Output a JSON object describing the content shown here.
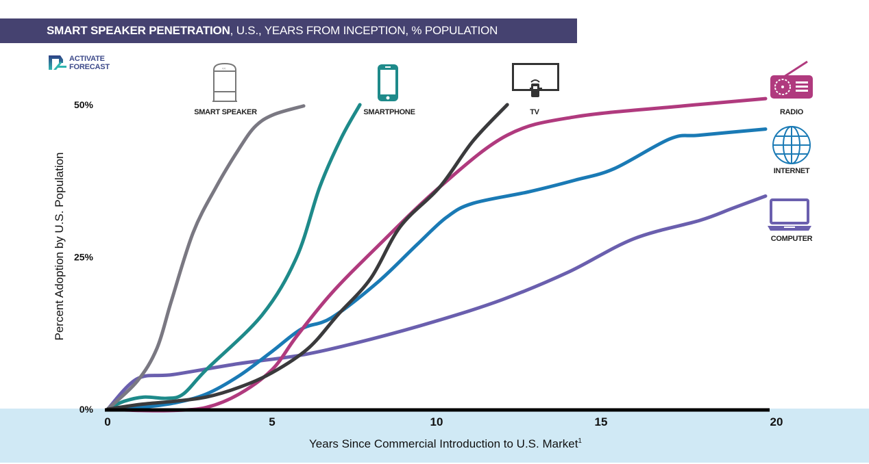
{
  "header": {
    "title_bold": "SMART SPEAKER PENETRATION",
    "title_rest": ", U.S., YEARS FROM INCEPTION, % POPULATION"
  },
  "logo": {
    "line1": "ACTIVATE",
    "line2": "FORECAST"
  },
  "colors": {
    "header_bg": "#454270",
    "band_bg": "#d0e9f5",
    "smart_speaker": "#7a7882",
    "smartphone": "#1e8a8a",
    "tv": "#3a3a3c",
    "radio": "#b03a7e",
    "internet": "#1a7ab5",
    "computer": "#6a5fae"
  },
  "chart_data": {
    "type": "line",
    "title": "SMART SPEAKER PENETRATION, U.S., YEARS FROM INCEPTION, % POPULATION",
    "xlabel": "Years Since Commercial Introduction to U.S. Market",
    "xlabel_superscript": "1",
    "ylabel": "Percent Adoption by U.S. Population",
    "xlim": [
      0,
      20
    ],
    "ylim": [
      0,
      50
    ],
    "x_ticks": [
      {
        "value": 0,
        "label": "0"
      },
      {
        "value": 5,
        "label": "5"
      },
      {
        "value": 10,
        "label": "10"
      },
      {
        "value": 15,
        "label": "15"
      },
      {
        "value": 20,
        "label": "20"
      }
    ],
    "y_ticks": [
      {
        "value": 0,
        "label": "0%"
      },
      {
        "value": 25,
        "label": "25%"
      },
      {
        "value": 50,
        "label": "50%"
      }
    ],
    "grid": false,
    "series": [
      {
        "key": "smart_speaker",
        "name": "SMART SPEAKER",
        "icon": "smart-speaker-icon",
        "points": [
          [
            0,
            0
          ],
          [
            0.9,
            4.6
          ],
          [
            1.5,
            10
          ],
          [
            1.94,
            17.8
          ],
          [
            2.6,
            29
          ],
          [
            3.3,
            36.5
          ],
          [
            4.0,
            42.8
          ],
          [
            4.5,
            46.5
          ],
          [
            5.06,
            48.4
          ],
          [
            5.96,
            49.8
          ]
        ]
      },
      {
        "key": "smartphone",
        "name": "SMARTPHONE",
        "icon": "smartphone-icon",
        "points": [
          [
            0,
            0
          ],
          [
            0.5,
            1.3
          ],
          [
            1.1,
            2.0
          ],
          [
            1.8,
            1.8
          ],
          [
            2.3,
            2.5
          ],
          [
            3,
            6.5
          ],
          [
            4.7,
            15.5
          ],
          [
            5.75,
            25
          ],
          [
            6.45,
            36.5
          ],
          [
            7.1,
            44.5
          ],
          [
            7.67,
            50
          ]
        ]
      },
      {
        "key": "tv",
        "name": "TV",
        "icon": "tv-icon",
        "points": [
          [
            0,
            0
          ],
          [
            1,
            0.8
          ],
          [
            2,
            1.3
          ],
          [
            3,
            2
          ],
          [
            4,
            3.6
          ],
          [
            5,
            6
          ],
          [
            6.1,
            10
          ],
          [
            7,
            15.5
          ],
          [
            8,
            21.5
          ],
          [
            8.9,
            30
          ],
          [
            10.1,
            36.5
          ],
          [
            11.1,
            44
          ],
          [
            12.15,
            50
          ]
        ]
      },
      {
        "key": "radio",
        "name": "RADIO",
        "icon": "radio-icon",
        "points": [
          [
            0,
            0
          ],
          [
            1,
            -0.2
          ],
          [
            2,
            -0.2
          ],
          [
            3,
            0.3
          ],
          [
            4,
            2.5
          ],
          [
            5,
            6.5
          ],
          [
            5.75,
            12
          ],
          [
            6.8,
            19
          ],
          [
            8.2,
            26.7
          ],
          [
            10.1,
            36.5
          ],
          [
            12.15,
            45
          ],
          [
            14.2,
            48
          ],
          [
            17.5,
            49.8
          ],
          [
            20,
            51
          ]
        ]
      },
      {
        "key": "internet",
        "name": "INTERNET",
        "icon": "internet-icon",
        "points": [
          [
            0,
            0
          ],
          [
            1,
            0.3
          ],
          [
            2,
            1
          ],
          [
            3,
            2.5
          ],
          [
            4,
            5.5
          ],
          [
            5,
            9.5
          ],
          [
            5.9,
            13.2
          ],
          [
            6.8,
            15
          ],
          [
            8.2,
            20.8
          ],
          [
            9.4,
            27
          ],
          [
            10.3,
            31.5
          ],
          [
            11.1,
            33.8
          ],
          [
            12.8,
            35.7
          ],
          [
            14.2,
            37.6
          ],
          [
            15.4,
            39.5
          ],
          [
            17.1,
            44.4
          ],
          [
            18,
            45
          ],
          [
            20,
            46
          ]
        ]
      },
      {
        "key": "computer",
        "name": "COMPUTER",
        "icon": "computer-icon",
        "points": [
          [
            0,
            0
          ],
          [
            0.9,
            5
          ],
          [
            2,
            5.7
          ],
          [
            4,
            7.5
          ],
          [
            6,
            9
          ],
          [
            8,
            11.5
          ],
          [
            10,
            14.5
          ],
          [
            12,
            18
          ],
          [
            14,
            22.5
          ],
          [
            16,
            28
          ],
          [
            18,
            31
          ],
          [
            19,
            33
          ],
          [
            20,
            35
          ]
        ]
      }
    ]
  }
}
